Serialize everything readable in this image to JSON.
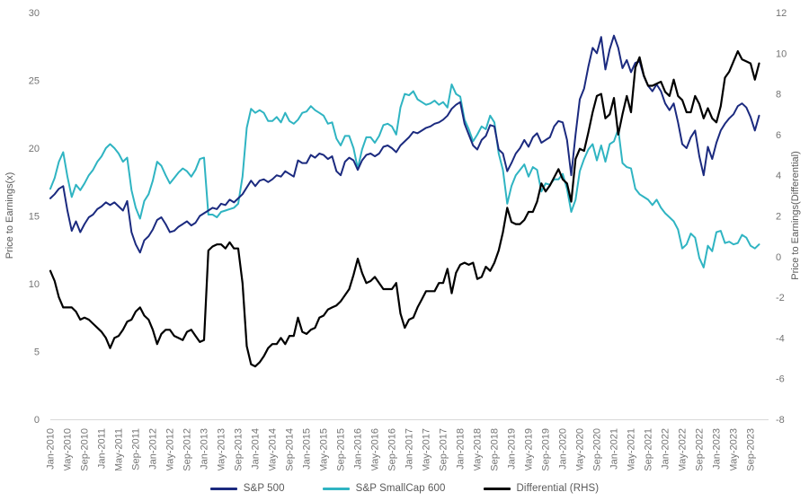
{
  "chart_data": {
    "type": "line",
    "title": "",
    "frequency": "monthly",
    "x_start": "Jan-2010",
    "x_end": "Nov-2023",
    "grid": false,
    "legend_position": "bottom",
    "x_axis": {
      "tick_every_n_months": 4,
      "tick_labels": [
        "Jan-2010",
        "May-2010",
        "Sep-2010",
        "Jan-2011",
        "May-2011",
        "Sep-2011",
        "Jan-2012",
        "May-2012",
        "Sep-2012",
        "Jan-2013",
        "May-2013",
        "Sep-2013",
        "Jan-2014",
        "May-2014",
        "Sep-2014",
        "Jan-2015",
        "May-2015",
        "Sep-2015",
        "Jan-2016",
        "May-2016",
        "Sep-2016",
        "Jan-2017",
        "May-2017",
        "Sep-2017",
        "Jan-2018",
        "May-2018",
        "Sep-2018",
        "Jan-2019",
        "May-2019",
        "Sep-2019",
        "Jan-2020",
        "May-2020",
        "Sep-2020",
        "Jan-2021",
        "May-2021",
        "Sep-2021",
        "Jan-2022",
        "May-2022",
        "Sep-2022",
        "Jan-2023",
        "May-2023",
        "Sep-2023"
      ]
    },
    "y_axis_left": {
      "label": "Price to Earnings(x)",
      "range": [
        0,
        30
      ],
      "ticks": [
        0,
        5,
        10,
        15,
        20,
        25,
        30
      ]
    },
    "y_axis_right": {
      "label": "Price to Earnings(Differential)",
      "range": [
        -8,
        12
      ],
      "ticks": [
        -8,
        -6,
        -4,
        -2,
        0,
        2,
        4,
        6,
        8,
        10,
        12
      ]
    },
    "series": [
      {
        "name": "S&P 500",
        "axis": "left",
        "color": "#1b2a7f",
        "width": 2,
        "values": [
          16.3,
          16.6,
          17.0,
          17.2,
          15.4,
          13.9,
          14.6,
          13.8,
          14.4,
          14.9,
          15.1,
          15.5,
          15.7,
          16.0,
          15.8,
          16.0,
          15.7,
          15.4,
          16.1,
          13.8,
          12.9,
          12.3,
          13.2,
          13.5,
          14.0,
          14.7,
          14.9,
          14.4,
          13.8,
          13.9,
          14.2,
          14.4,
          14.6,
          14.3,
          14.5,
          15.0,
          15.2,
          15.4,
          15.6,
          15.5,
          15.9,
          15.8,
          16.2,
          16.0,
          16.3,
          16.6,
          17.1,
          17.6,
          17.2,
          17.6,
          17.7,
          17.5,
          17.7,
          18.0,
          17.9,
          18.3,
          18.1,
          17.9,
          19.1,
          18.9,
          18.9,
          19.5,
          19.3,
          19.6,
          19.5,
          19.2,
          19.4,
          18.3,
          18.0,
          19.0,
          19.3,
          19.1,
          18.4,
          19.1,
          19.5,
          19.6,
          19.4,
          19.6,
          20.1,
          20.2,
          20.0,
          19.7,
          20.2,
          20.5,
          20.8,
          21.2,
          21.1,
          21.3,
          21.5,
          21.6,
          21.8,
          21.9,
          22.1,
          22.4,
          22.9,
          23.2,
          23.4,
          21.8,
          21.0,
          20.2,
          19.9,
          20.6,
          20.9,
          21.7,
          21.6,
          19.9,
          19.6,
          18.3,
          18.9,
          19.6,
          20.0,
          20.6,
          20.1,
          20.8,
          21.1,
          20.4,
          20.6,
          20.8,
          21.6,
          22.0,
          21.9,
          20.6,
          18.0,
          21.0,
          23.6,
          24.4,
          26.0,
          27.4,
          27.0,
          28.2,
          25.8,
          27.3,
          28.3,
          27.4,
          25.9,
          26.5,
          25.6,
          26.3,
          26.4,
          25.3,
          24.6,
          24.2,
          24.7,
          24.2,
          23.3,
          22.8,
          23.3,
          21.9,
          20.3,
          20.0,
          20.8,
          21.3,
          19.4,
          18.0,
          20.1,
          19.2,
          20.4,
          21.3,
          21.8,
          22.2,
          22.5,
          23.1,
          23.3,
          23.0,
          22.3,
          21.3,
          22.4
        ]
      },
      {
        "name": "S&P SmallCap 600",
        "axis": "left",
        "color": "#2fb4c2",
        "width": 2,
        "values": [
          17.0,
          17.8,
          19.0,
          19.7,
          17.9,
          16.4,
          17.3,
          16.9,
          17.4,
          18.0,
          18.4,
          19.0,
          19.4,
          20.0,
          20.3,
          20.0,
          19.6,
          19.0,
          19.3,
          16.9,
          15.6,
          14.8,
          16.1,
          16.6,
          17.6,
          19.0,
          18.7,
          18.0,
          17.4,
          17.8,
          18.2,
          18.5,
          18.3,
          17.9,
          18.4,
          19.2,
          19.3,
          15.1,
          15.1,
          14.9,
          15.3,
          15.4,
          15.5,
          15.6,
          15.9,
          17.9,
          21.5,
          22.9,
          22.6,
          22.8,
          22.6,
          22.0,
          22.0,
          22.3,
          21.9,
          22.6,
          22.0,
          21.8,
          22.1,
          22.6,
          22.7,
          23.1,
          22.8,
          22.6,
          22.4,
          21.8,
          21.9,
          20.7,
          20.2,
          20.9,
          20.9,
          20.0,
          18.5,
          19.9,
          20.8,
          20.8,
          20.4,
          20.9,
          21.7,
          21.8,
          21.6,
          21.0,
          23.0,
          24.0,
          23.9,
          24.2,
          23.6,
          23.4,
          23.2,
          23.3,
          23.5,
          23.2,
          23.4,
          23.0,
          24.7,
          24.0,
          23.8,
          22.1,
          21.4,
          20.5,
          21.0,
          21.6,
          21.4,
          22.4,
          21.9,
          19.6,
          18.4,
          15.9,
          17.2,
          18.0,
          18.4,
          18.8,
          17.9,
          18.6,
          18.4,
          16.8,
          17.4,
          17.3,
          17.7,
          17.7,
          18.1,
          17.0,
          15.3,
          16.2,
          18.3,
          19.2,
          19.9,
          20.3,
          19.1,
          20.2,
          19.0,
          20.3,
          20.5,
          21.4,
          18.9,
          18.6,
          18.5,
          17.0,
          16.6,
          16.4,
          16.2,
          15.8,
          16.2,
          15.6,
          15.2,
          14.9,
          14.6,
          14.0,
          12.6,
          12.9,
          13.7,
          13.4,
          11.9,
          11.2,
          12.8,
          12.4,
          13.8,
          13.9,
          13.0,
          13.1,
          12.9,
          13.0,
          13.6,
          13.4,
          12.8,
          12.6,
          12.9
        ]
      },
      {
        "name": "Differential (RHS)",
        "axis": "right",
        "color": "#000000",
        "width": 2.2,
        "values": [
          -0.7,
          -1.2,
          -2.0,
          -2.5,
          -2.5,
          -2.5,
          -2.7,
          -3.1,
          -3.0,
          -3.1,
          -3.3,
          -3.5,
          -3.7,
          -4.0,
          -4.5,
          -4.0,
          -3.9,
          -3.6,
          -3.2,
          -3.1,
          -2.7,
          -2.5,
          -2.9,
          -3.1,
          -3.6,
          -4.3,
          -3.8,
          -3.6,
          -3.6,
          -3.9,
          -4.0,
          -4.1,
          -3.7,
          -3.6,
          -3.9,
          -4.2,
          -4.1,
          0.3,
          0.5,
          0.6,
          0.6,
          0.4,
          0.7,
          0.4,
          0.4,
          -1.3,
          -4.4,
          -5.3,
          -5.4,
          -5.2,
          -4.9,
          -4.5,
          -4.3,
          -4.3,
          -4.0,
          -4.3,
          -3.9,
          -3.9,
          -3.0,
          -3.7,
          -3.8,
          -3.6,
          -3.5,
          -3.0,
          -2.9,
          -2.6,
          -2.5,
          -2.4,
          -2.2,
          -1.9,
          -1.6,
          -0.9,
          -0.1,
          -0.8,
          -1.3,
          -1.2,
          -1.0,
          -1.3,
          -1.6,
          -1.6,
          -1.6,
          -1.3,
          -2.8,
          -3.5,
          -3.1,
          -3.0,
          -2.5,
          -2.1,
          -1.7,
          -1.7,
          -1.7,
          -1.3,
          -1.3,
          -0.6,
          -1.8,
          -0.8,
          -0.4,
          -0.3,
          -0.4,
          -0.3,
          -1.1,
          -1.0,
          -0.5,
          -0.7,
          -0.3,
          0.3,
          1.2,
          2.4,
          1.7,
          1.6,
          1.6,
          1.8,
          2.2,
          2.2,
          2.7,
          3.6,
          3.2,
          3.5,
          3.9,
          4.3,
          3.8,
          3.6,
          2.7,
          4.8,
          5.3,
          5.2,
          6.1,
          7.1,
          7.9,
          8.0,
          6.8,
          7.0,
          7.8,
          6.0,
          7.0,
          7.9,
          7.1,
          9.3,
          9.8,
          8.9,
          8.4,
          8.4,
          8.5,
          8.6,
          8.1,
          7.9,
          8.7,
          7.9,
          7.7,
          7.1,
          7.1,
          7.9,
          7.5,
          6.8,
          7.3,
          6.8,
          6.6,
          7.4,
          8.8,
          9.1,
          9.6,
          10.1,
          9.7,
          9.6,
          9.5,
          8.7,
          9.5
        ]
      }
    ],
    "style": {
      "tick_color": "#737373",
      "axis_title_color": "#595959",
      "axis_line_color": "#d9d9d9",
      "background": "#ffffff"
    }
  }
}
